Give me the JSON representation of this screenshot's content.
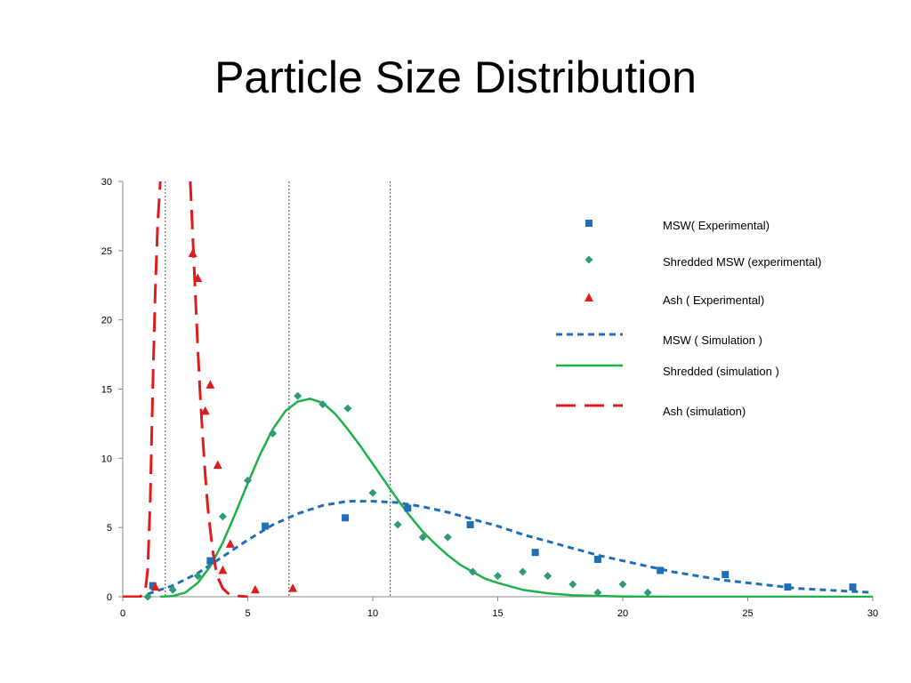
{
  "slide": {
    "title": "Particle Size Distribution"
  },
  "chart_data": {
    "type": "scatter",
    "title": "Particle Size Distribution",
    "xlabel": "",
    "ylabel": "",
    "xlim": [
      0,
      30
    ],
    "ylim": [
      0,
      30
    ],
    "x_ticks": [
      0,
      5,
      10,
      15,
      20,
      25,
      30
    ],
    "y_ticks": [
      0,
      5,
      10,
      15,
      20,
      25,
      30
    ],
    "grid": false,
    "legend_position": "top-right",
    "reference_lines_x": [
      1.7,
      6.65,
      10.7
    ],
    "series": [
      {
        "name": "MSW( Experimental)",
        "kind": "points",
        "marker": "square",
        "color": "#1f6fb8",
        "x": [
          1.2,
          3.5,
          5.7,
          8.9,
          11.4,
          13.9,
          16.5,
          19.0,
          21.5,
          24.1,
          26.6,
          29.2
        ],
        "y": [
          0.8,
          2.6,
          5.1,
          5.7,
          6.4,
          5.2,
          3.2,
          2.7,
          1.9,
          1.6,
          0.7,
          0.7
        ]
      },
      {
        "name": "Shredded MSW (experimental)",
        "kind": "points",
        "marker": "diamond",
        "color": "#2e9a78",
        "x": [
          1.0,
          2.0,
          3.0,
          4.0,
          5.0,
          6.0,
          7.0,
          8.0,
          9.0,
          10.0,
          11.0,
          12.0,
          13.0,
          14.0,
          15.0,
          16.0,
          17.0,
          18.0,
          19.0,
          20.0,
          21.0
        ],
        "y": [
          0.0,
          0.5,
          1.5,
          5.8,
          8.4,
          11.8,
          14.5,
          13.9,
          13.6,
          7.5,
          5.2,
          4.3,
          4.3,
          1.8,
          1.5,
          1.8,
          1.5,
          0.9,
          0.3,
          0.9,
          0.3
        ]
      },
      {
        "name": "Ash ( Experimental)",
        "kind": "points",
        "marker": "triangle",
        "color": "#e01b1b",
        "x": [
          1.3,
          2.8,
          3.0,
          3.3,
          3.5,
          3.8,
          4.0,
          4.3,
          5.3,
          6.8
        ],
        "y": [
          0.7,
          24.8,
          23.0,
          13.4,
          15.3,
          9.5,
          1.9,
          3.8,
          0.5,
          0.6
        ]
      },
      {
        "name": "MSW ( Simulation )",
        "kind": "line",
        "dash": "dashed",
        "color": "#1f6fb8",
        "x": [
          1.0,
          2.0,
          3.0,
          4.0,
          5.0,
          6.0,
          7.0,
          8.0,
          9.0,
          10.0,
          11.0,
          12.0,
          13.0,
          14.0,
          15.0,
          16.0,
          17.0,
          18.0,
          19.0,
          20.0,
          21.0,
          22.0,
          23.0,
          24.0,
          25.0,
          26.0,
          27.0,
          28.0,
          29.0,
          30.0
        ],
        "y": [
          0.2,
          0.8,
          1.7,
          2.9,
          4.1,
          5.2,
          6.0,
          6.6,
          6.9,
          6.9,
          6.8,
          6.5,
          6.1,
          5.6,
          5.1,
          4.5,
          4.0,
          3.5,
          3.0,
          2.6,
          2.2,
          1.8,
          1.5,
          1.2,
          1.0,
          0.8,
          0.6,
          0.5,
          0.4,
          0.3
        ]
      },
      {
        "name": "Shredded (simulation )",
        "kind": "line",
        "dash": "solid",
        "color": "#1db14b",
        "x": [
          1.5,
          2.0,
          2.5,
          3.0,
          3.5,
          4.0,
          4.5,
          5.0,
          5.5,
          6.0,
          6.5,
          7.0,
          7.5,
          8.0,
          8.5,
          9.0,
          9.5,
          10.0,
          10.5,
          11.0,
          11.5,
          12.0,
          12.5,
          13.0,
          13.5,
          14.0,
          14.5,
          15.0,
          16.0,
          17.0,
          18.0,
          20.0,
          22.0,
          25.0,
          30.0
        ],
        "y": [
          0.0,
          0.05,
          0.3,
          1.0,
          2.2,
          3.9,
          6.0,
          8.2,
          10.3,
          12.1,
          13.4,
          14.1,
          14.3,
          14.0,
          13.2,
          12.1,
          10.9,
          9.6,
          8.3,
          7.0,
          5.8,
          4.7,
          3.8,
          3.0,
          2.3,
          1.8,
          1.3,
          1.0,
          0.5,
          0.25,
          0.1,
          0.02,
          0.0,
          0.0,
          0.0
        ]
      },
      {
        "name": "Ash (simulation)",
        "kind": "line",
        "dash": "long-dash",
        "color": "#e01b1b",
        "x": [
          0.0,
          0.7,
          0.9,
          1.0,
          1.1,
          1.2,
          1.3,
          1.4,
          1.5
        ],
        "y": [
          0.0,
          0.0,
          0.4,
          2.0,
          7.0,
          15.0,
          22.0,
          27.0,
          30.0
        ],
        "x2": [
          2.7,
          2.8,
          2.9,
          3.0,
          3.1,
          3.2,
          3.3,
          3.4,
          3.5,
          3.6,
          3.7,
          3.8,
          4.0,
          4.3,
          5.0
        ],
        "y2": [
          30.0,
          26.0,
          22.0,
          18.0,
          14.5,
          11.5,
          8.8,
          6.5,
          4.8,
          3.3,
          2.2,
          1.4,
          0.6,
          0.1,
          0.0
        ]
      }
    ]
  }
}
